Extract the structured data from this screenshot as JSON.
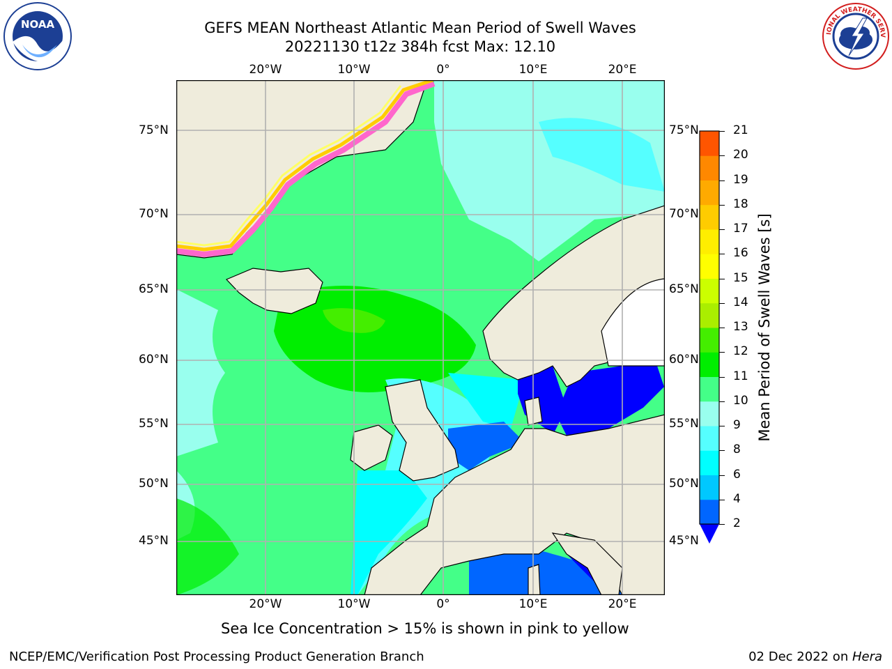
{
  "title": {
    "line1": "GEFS MEAN Northeast Atlantic Mean Period of Swell Waves",
    "line2": "20221130 t12z 384h fcst   Max: 12.10"
  },
  "logos": {
    "noara_name": "noaa-logo",
    "noaa_text": "NOAA",
    "nws_name": "nws-logo",
    "nws_text": "NATIONAL WEATHER SERVICE"
  },
  "map": {
    "lon_labels_top": [
      "20°W",
      "10°W",
      "0°",
      "10°E",
      "20°E"
    ],
    "lon_labels_bottom": [
      "20°W",
      "10°W",
      "0°",
      "10°E",
      "20°E"
    ],
    "lat_labels_left": [
      "75°N",
      "70°N",
      "65°N",
      "60°N",
      "55°N",
      "50°N",
      "45°N"
    ],
    "lat_labels_right": [
      "75°N",
      "70°N",
      "65°N",
      "60°N",
      "55°N",
      "50°N",
      "45°N"
    ],
    "land_color": "#efecdc",
    "ocean_base_color": "#44ff88"
  },
  "colorbar": {
    "label": "Mean Period of Swell Waves [s]",
    "ticks": [
      "2",
      "4",
      "6",
      "8",
      "9",
      "10",
      "11",
      "12",
      "13",
      "14",
      "15",
      "16",
      "17",
      "18",
      "19",
      "20",
      "21"
    ],
    "colors": [
      "#0066ff",
      "#00c8ff",
      "#00ffff",
      "#55ffff",
      "#99ffee",
      "#44ff88",
      "#00ee00",
      "#44ee00",
      "#aaee00",
      "#ccff00",
      "#ffff00",
      "#ffee00",
      "#ffcc00",
      "#ffaa00",
      "#ff8800",
      "#ff5500",
      "#ff3300",
      "#ff0000"
    ],
    "under_color": "#0000ff"
  },
  "caption": "Sea Ice Concentration > 15% is shown in pink to yellow",
  "footer": {
    "left": "NCEP/EMC/Verification Post Processing Product Generation Branch",
    "right_date": "02 Dec 2022 on ",
    "right_host": "Hera"
  }
}
